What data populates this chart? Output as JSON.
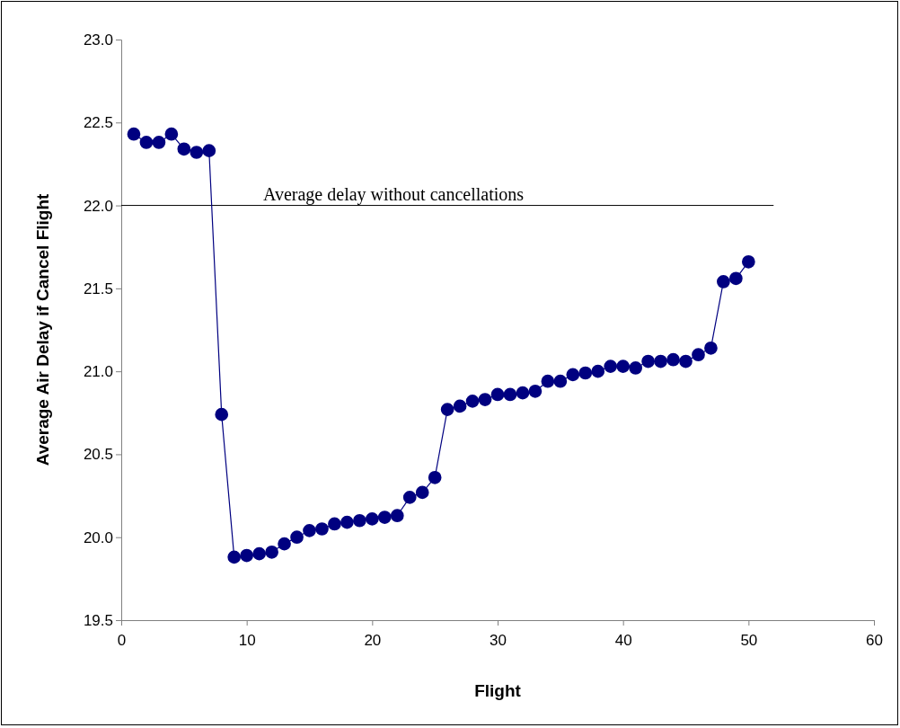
{
  "chart_data": {
    "type": "line",
    "xlabel": "Flight",
    "ylabel": "Average Air Delay if Cancel Flight",
    "x": [
      1,
      2,
      3,
      4,
      5,
      6,
      7,
      8,
      9,
      10,
      11,
      12,
      13,
      14,
      15,
      16,
      17,
      18,
      19,
      20,
      21,
      22,
      23,
      24,
      25,
      26,
      27,
      28,
      29,
      30,
      31,
      32,
      33,
      34,
      35,
      36,
      37,
      38,
      39,
      40,
      41,
      42,
      43,
      44,
      45,
      46,
      47,
      48,
      49,
      50
    ],
    "series": [
      {
        "color": "#000080",
        "values": [
          22.43,
          22.38,
          22.38,
          22.43,
          22.34,
          22.32,
          22.33,
          20.74,
          19.88,
          19.89,
          19.9,
          19.91,
          19.96,
          20.0,
          20.04,
          20.05,
          20.08,
          20.09,
          20.1,
          20.11,
          20.12,
          20.13,
          20.24,
          20.27,
          20.36,
          20.77,
          20.79,
          20.82,
          20.83,
          20.86,
          20.86,
          20.87,
          20.88,
          20.94,
          20.94,
          20.98,
          20.99,
          21.0,
          21.03,
          21.03,
          21.02,
          21.06,
          21.06,
          21.07,
          21.06,
          21.1,
          21.14,
          21.54,
          21.56,
          21.66
        ]
      }
    ],
    "xlim": [
      0,
      60
    ],
    "xticks": [
      0,
      10,
      20,
      30,
      40,
      50,
      60
    ],
    "ylim": [
      19.5,
      23
    ],
    "yticks": [
      {
        "value": 19.5,
        "label": "19.5"
      },
      {
        "value": 20,
        "label": "20.0"
      },
      {
        "value": 20.5,
        "label": "20.5"
      },
      {
        "value": 21,
        "label": "21.0"
      },
      {
        "value": 21.5,
        "label": "21.5"
      },
      {
        "value": 22,
        "label": "22.0"
      },
      {
        "value": 22.5,
        "label": "22.5"
      },
      {
        "value": 23,
        "label": "23.0"
      }
    ],
    "ref_lines": [
      {
        "axis": "y",
        "value": 22,
        "label": "Average delay without cancellations",
        "color": "#000000"
      }
    ],
    "marker": "circle",
    "line_style": "solid"
  }
}
